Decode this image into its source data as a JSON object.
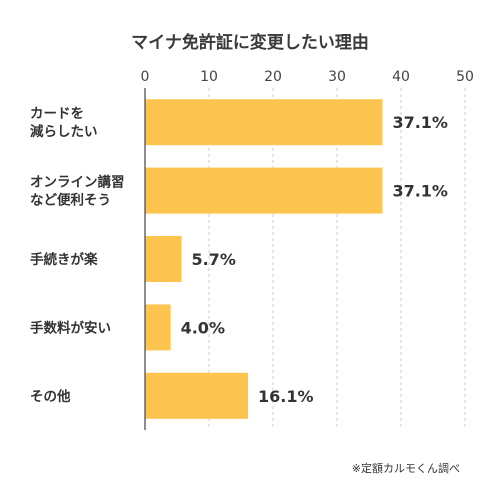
{
  "chart_data": {
    "type": "bar",
    "orientation": "horizontal",
    "title": "マイナ免許証に変更したい理由",
    "categories": [
      [
        "カードを",
        "減らしたい"
      ],
      [
        "オンライン講習",
        "など便利そう"
      ],
      [
        "手続きが楽"
      ],
      [
        "手数料が安い"
      ],
      [
        "その他"
      ]
    ],
    "values": [
      37.1,
      37.1,
      5.7,
      4.0,
      16.1
    ],
    "value_labels": [
      "37.1%",
      "37.1%",
      "5.7%",
      "4.0%",
      "16.1%"
    ],
    "xlim": [
      0,
      50
    ],
    "x_ticks": [
      0,
      10,
      20,
      30,
      40,
      50
    ],
    "x_axis_position": "top",
    "grid": true,
    "bar_color": "#FDC44F",
    "source_note": "※定額カルモくん調べ"
  }
}
